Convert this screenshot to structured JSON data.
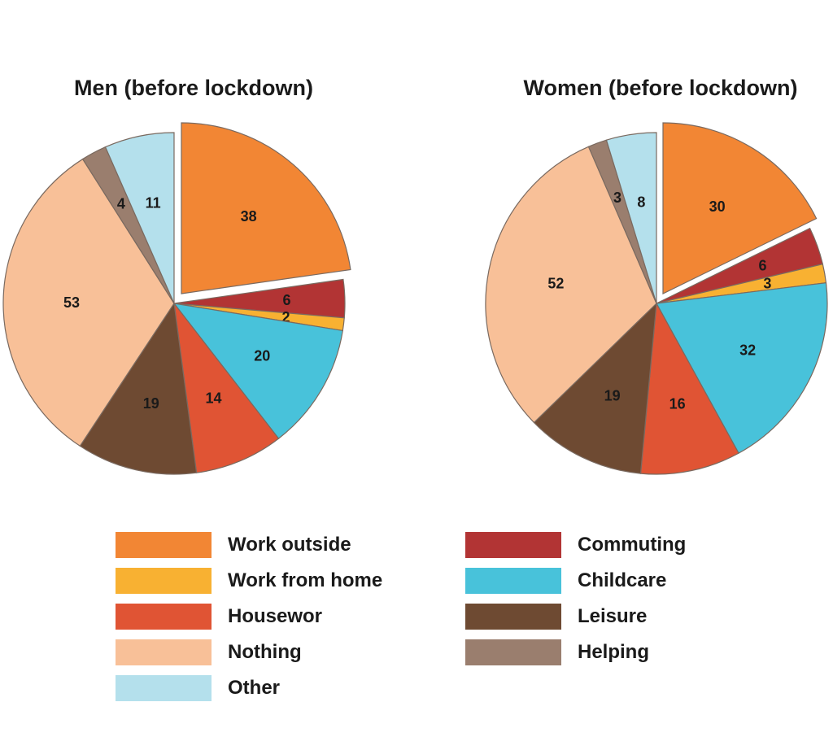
{
  "chart_data": [
    {
      "type": "pie",
      "title": "Men (before lockdown)",
      "categories": [
        "Work outside",
        "Commuting",
        "Work from home",
        "Childcare",
        "Housewor",
        "Leisure",
        "Nothing",
        "Helping",
        "Other"
      ],
      "values": [
        38,
        6,
        2,
        20,
        14,
        19,
        53,
        4,
        11
      ],
      "exploded": [
        "Work outside"
      ]
    },
    {
      "type": "pie",
      "title": "Women (before lockdown)",
      "categories": [
        "Work outside",
        "Commuting",
        "Work from home",
        "Childcare",
        "Housewor",
        "Leisure",
        "Nothing",
        "Helping",
        "Other"
      ],
      "values": [
        30,
        6,
        3,
        32,
        16,
        19,
        52,
        3,
        8
      ],
      "exploded": [
        "Work outside"
      ]
    }
  ],
  "legend": [
    {
      "label": "Work outside",
      "color": "#f28634"
    },
    {
      "label": "Work from home",
      "color": "#f8b132"
    },
    {
      "label": "Housewor",
      "color": "#e05434"
    },
    {
      "label": "Nothing",
      "color": "#f8c098"
    },
    {
      "label": "Other",
      "color": "#b4e0ec"
    },
    {
      "label": "Commuting",
      "color": "#b23434"
    },
    {
      "label": "Childcare",
      "color": "#48c2da"
    },
    {
      "label": "Leisure",
      "color": "#6e4a32"
    },
    {
      "label": "Helping",
      "color": "#9a7e6e"
    }
  ],
  "colors": {
    "Work outside": "#f28634",
    "Commuting": "#b23434",
    "Work from home": "#f8b132",
    "Childcare": "#48c2da",
    "Housewor": "#e05434",
    "Leisure": "#6e4a32",
    "Nothing": "#f8c098",
    "Helping": "#9a7e6e",
    "Other": "#b4e0ec"
  }
}
